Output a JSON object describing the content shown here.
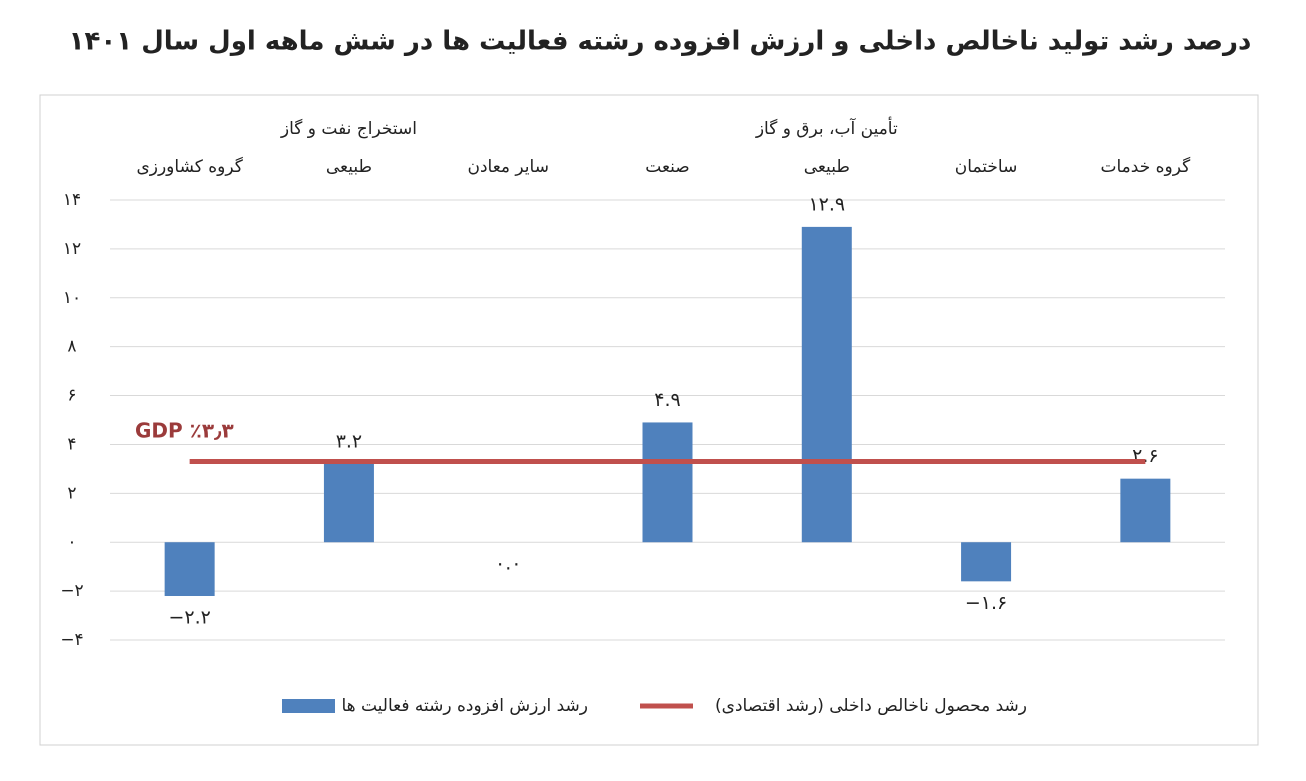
{
  "chart_data": {
    "type": "bar",
    "title": "درصد رشد تولید ناخالص داخلی و ارزش افزوده رشته فعالیت ها در شش ماهه اول سال ۱۴۰۱",
    "categories": [
      "گروه کشاورزی",
      "استخراج نفت و گاز\nطبیعی",
      "سایر معادن",
      "صنعت",
      "تأمین آب، برق و گاز\nطبیعی",
      "ساختمان",
      "گروه خدمات"
    ],
    "series": [
      {
        "name": "رشد ارزش افزوده رشته فعالیت ها",
        "color": "#4f81bd",
        "values": [
          -2.2,
          3.2,
          0.0,
          4.9,
          12.9,
          -1.6,
          2.6
        ],
        "value_labels": [
          "−۲.۲",
          "۳.۲",
          "۰.۰",
          "۴.۹",
          "۱۲.۹",
          "−۱.۶",
          "۲.۶"
        ]
      }
    ],
    "reference_line": {
      "name": "رشد محصول ناخالص داخلی (رشد اقتصادی)",
      "color": "#c0504d",
      "value": 3.3,
      "label": "GDP  ٪۳٫۳"
    },
    "ylim": [
      -4,
      14
    ],
    "yticks": [
      {
        "value": -4,
        "label": "−۴"
      },
      {
        "value": -2,
        "label": "−۲"
      },
      {
        "value": 0,
        "label": "۰"
      },
      {
        "value": 2,
        "label": "۲"
      },
      {
        "value": 4,
        "label": "۴"
      },
      {
        "value": 6,
        "label": "۶"
      },
      {
        "value": 8,
        "label": "۸"
      },
      {
        "value": 10,
        "label": "۱۰"
      },
      {
        "value": 12,
        "label": "۱۲"
      },
      {
        "value": 14,
        "label": "۱۴"
      }
    ],
    "grid": true
  }
}
